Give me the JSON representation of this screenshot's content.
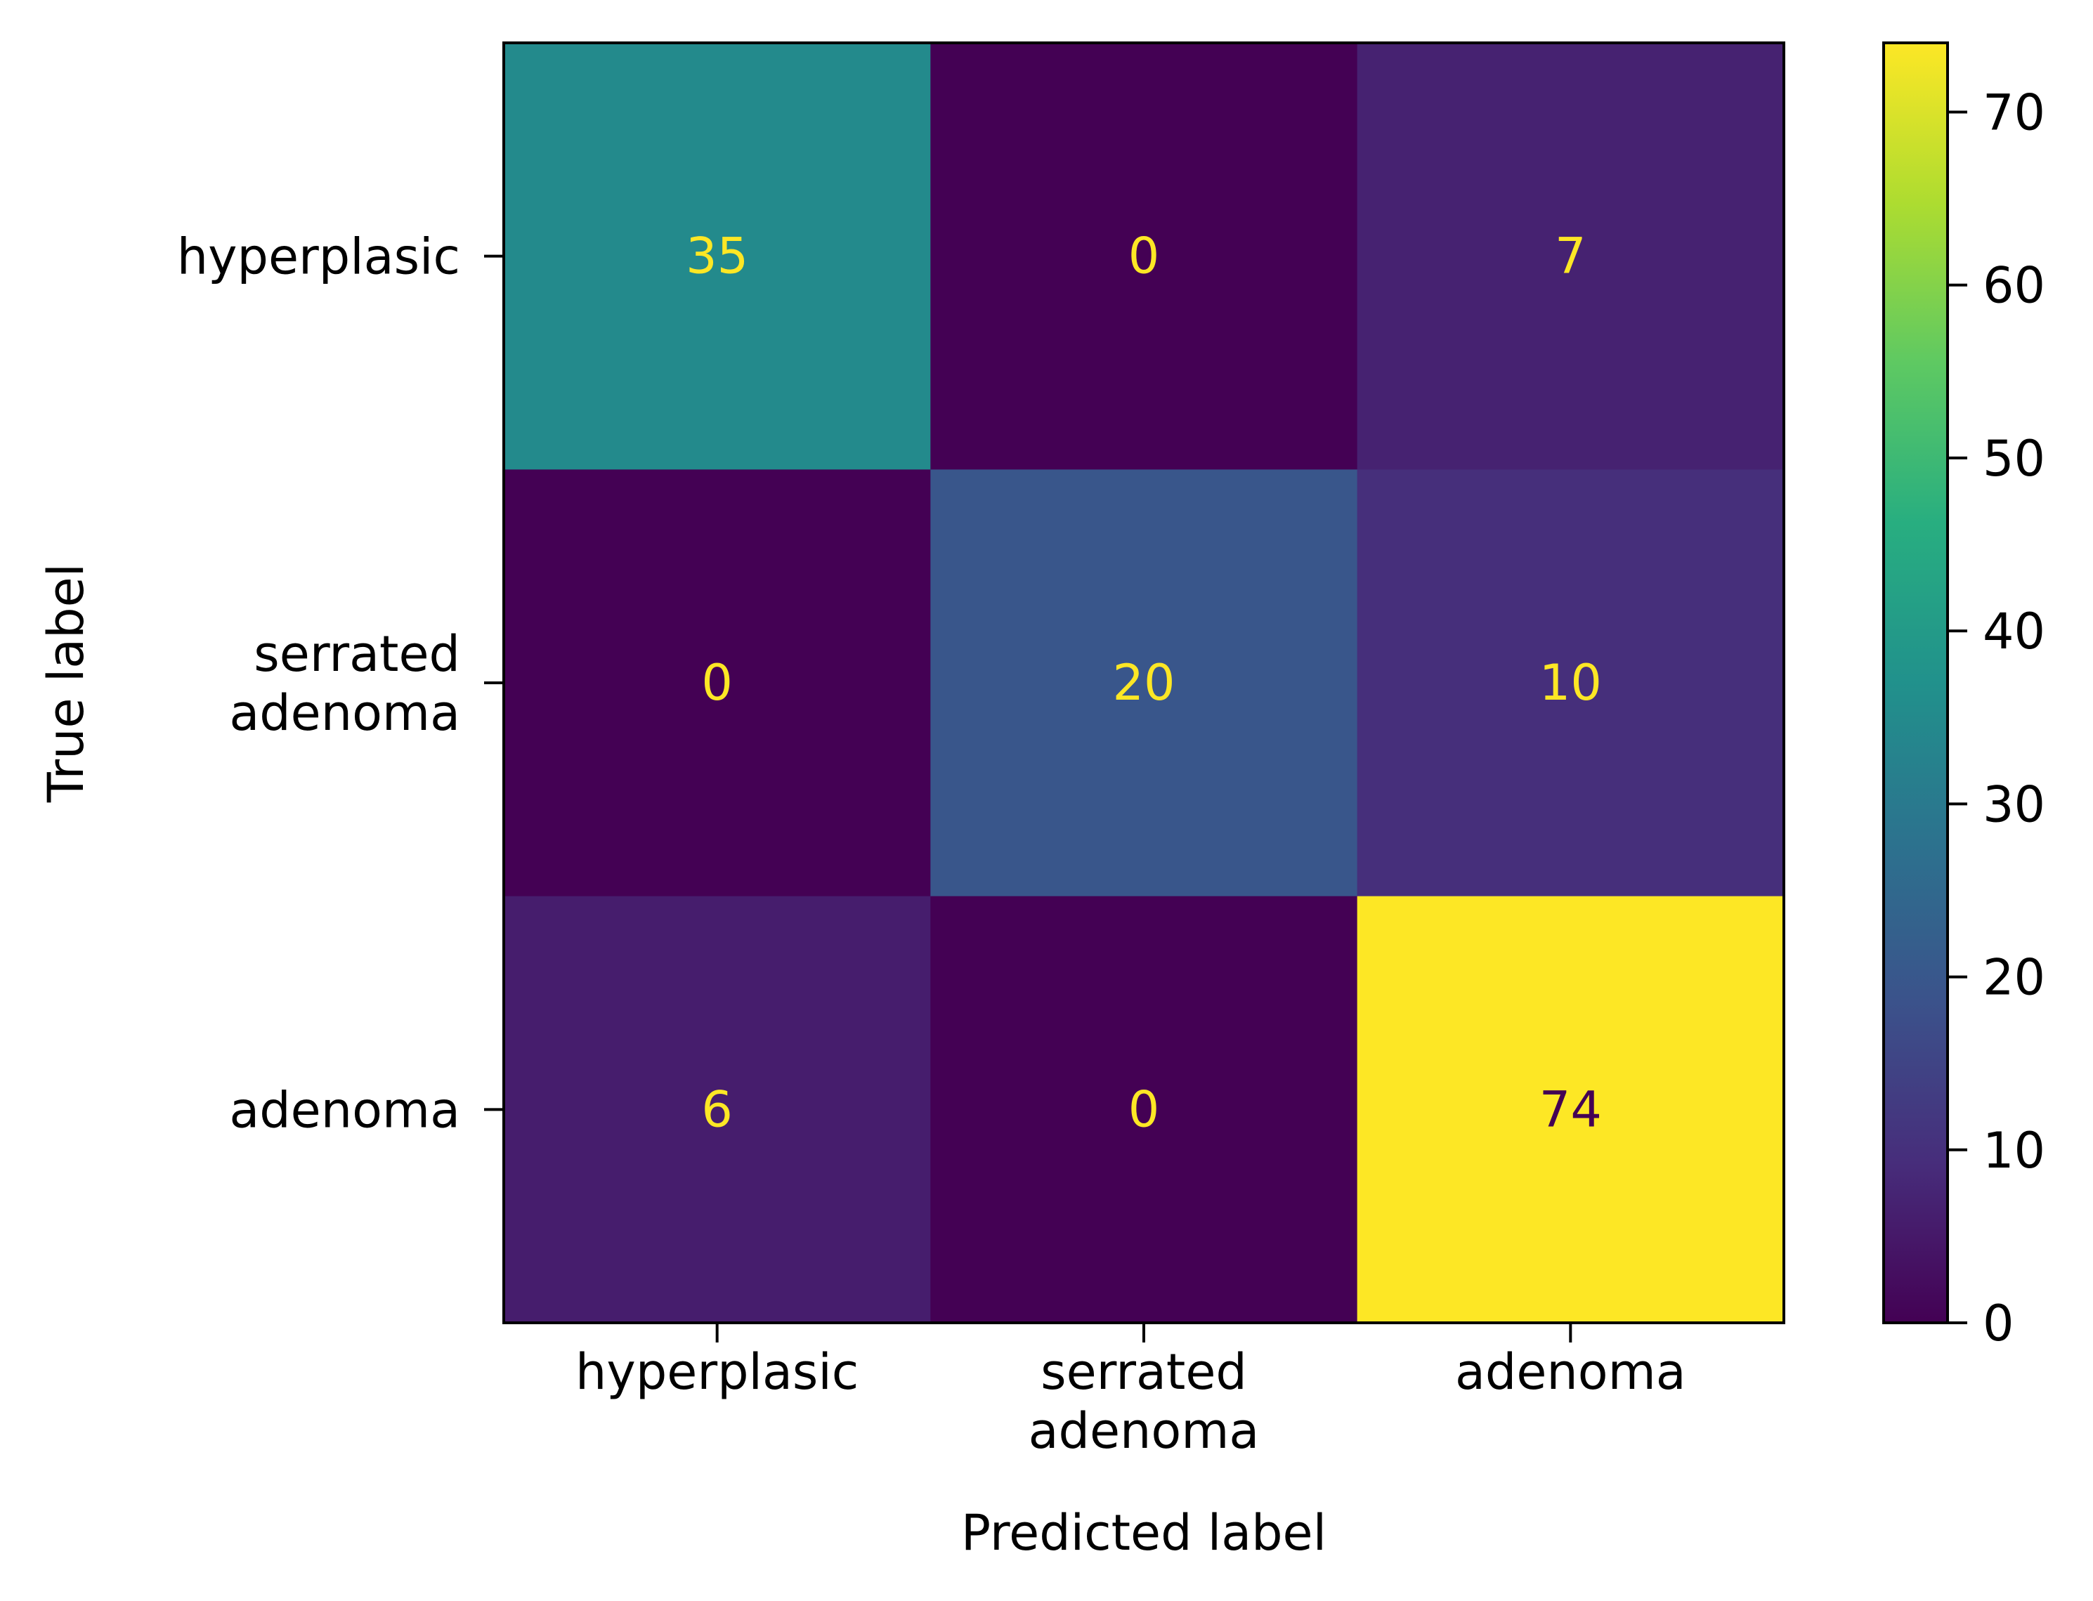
{
  "chart_data": {
    "type": "heatmap",
    "title": "",
    "xlabel": "Predicted label",
    "ylabel": "True label",
    "x_categories": [
      "hyperplasic",
      "serrated\nadenoma",
      "adenoma"
    ],
    "y_categories": [
      "hyperplasic",
      "serrated\nadenoma",
      "adenoma"
    ],
    "values": [
      [
        35,
        0,
        7
      ],
      [
        0,
        20,
        10
      ],
      [
        6,
        0,
        74
      ]
    ],
    "colormap": "viridis",
    "color_range": [
      0,
      74
    ],
    "colorbar": {
      "ticks": [
        0,
        10,
        20,
        30,
        40,
        50,
        60,
        70
      ],
      "placement": "right"
    },
    "label_colors": {
      "on_dark": "#fde725",
      "on_bright": "#440154"
    },
    "grid": false
  }
}
